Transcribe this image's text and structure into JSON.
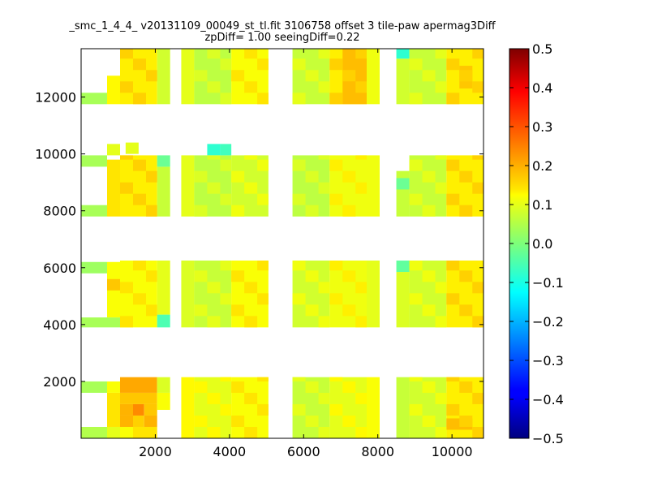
{
  "chart_data": {
    "type": "heatmap",
    "title": "_smc_1_4_4_ v20131109_00049_st_tl.fit 3106758 offset 3 tile-paw apermag3Diff",
    "subtitle": "zpDiff= 1.00 seeingDiff=0.22",
    "xlim": [
      0,
      10850
    ],
    "ylim": [
      0,
      13700
    ],
    "xticks": [
      2000,
      4000,
      6000,
      8000,
      10000
    ],
    "yticks": [
      2000,
      4000,
      6000,
      8000,
      10000,
      12000
    ],
    "colorbar": {
      "range": [
        -0.5,
        0.5
      ],
      "ticks": [
        0.5,
        0.4,
        0.3,
        0.2,
        0.1,
        0.0,
        -0.1,
        -0.2,
        -0.3,
        -0.4,
        -0.5
      ],
      "tick_labels": [
        "0.5",
        "0.4",
        "0.3",
        "0.2",
        "0.1",
        "0.0",
        "−0.1",
        "−0.2",
        "−0.3",
        "−0.4",
        "−0.5"
      ],
      "colormap": "jet"
    },
    "cell_size": [
      350,
      400
    ],
    "column_groups": [
      {
        "x": [
          0,
          1000
        ],
        "note": "partial"
      },
      {
        "x": [
          1000,
          2050
        ]
      },
      {
        "x": [
          2050,
          2400
        ]
      },
      {
        "x": [
          2700,
          3050
        ]
      },
      {
        "x": [
          3050,
          4050
        ]
      },
      {
        "x": [
          4050,
          5050
        ]
      },
      {
        "x": [
          5700,
          6700
        ]
      },
      {
        "x": [
          6700,
          7700
        ]
      },
      {
        "x": [
          7700,
          8050
        ]
      },
      {
        "x": [
          8500,
          8850
        ]
      },
      {
        "x": [
          8850,
          9850
        ]
      },
      {
        "x": [
          9850,
          10850
        ]
      }
    ],
    "row_bands": [
      [
        0,
        2150
      ],
      [
        3900,
        6250
      ],
      [
        7800,
        10200
      ],
      [
        11750,
        13700
      ]
    ],
    "cells": [
      {
        "x": 0,
        "y": 0,
        "w": 700,
        "h": 400,
        "v": 0.05
      },
      {
        "x": 700,
        "y": 0,
        "w": 350,
        "h": 400,
        "v": 0.1
      },
      {
        "x": 700,
        "y": 400,
        "w": 350,
        "h": 1200,
        "v": 0.15
      },
      {
        "x": 700,
        "y": 1600,
        "w": 350,
        "h": 400,
        "v": 0.12
      },
      {
        "x": 0,
        "y": 1600,
        "w": 700,
        "h": 400,
        "v": 0.04
      },
      {
        "x": 1050,
        "y": 0,
        "w": 350,
        "h": 400,
        "v": 0.12
      },
      {
        "x": 1400,
        "y": 0,
        "w": 650,
        "h": 400,
        "v": 0.15
      },
      {
        "x": 1050,
        "y": 400,
        "w": 350,
        "h": 400,
        "v": 0.2
      },
      {
        "x": 1400,
        "y": 400,
        "w": 300,
        "h": 400,
        "v": 0.17
      },
      {
        "x": 1700,
        "y": 400,
        "w": 350,
        "h": 400,
        "v": 0.2
      },
      {
        "x": 1050,
        "y": 800,
        "w": 350,
        "h": 400,
        "v": 0.2
      },
      {
        "x": 1400,
        "y": 800,
        "w": 300,
        "h": 400,
        "v": 0.24
      },
      {
        "x": 1700,
        "y": 800,
        "w": 350,
        "h": 400,
        "v": 0.18
      },
      {
        "x": 1050,
        "y": 1200,
        "w": 1000,
        "h": 400,
        "v": 0.18
      },
      {
        "x": 1050,
        "y": 1600,
        "w": 1000,
        "h": 550,
        "v": 0.21
      },
      {
        "x": 2050,
        "y": 1000,
        "w": 350,
        "h": 600,
        "v": 0.12
      },
      {
        "x": 2050,
        "y": 1600,
        "w": 350,
        "h": 550,
        "v": 0.09
      },
      {
        "x": 2700,
        "y": 0,
        "w": 350,
        "h": 2150,
        "v": 0.13
      },
      {
        "x": 3050,
        "y": 0,
        "w": 1000,
        "h": 2150,
        "v": 0.1
      },
      {
        "x": 4050,
        "y": 0,
        "w": 1000,
        "h": 2150,
        "v": 0.12
      },
      {
        "x": 5700,
        "y": 0,
        "w": 1000,
        "h": 2150,
        "v": 0.07
      },
      {
        "x": 6700,
        "y": 0,
        "w": 1000,
        "h": 2150,
        "v": 0.1
      },
      {
        "x": 7700,
        "y": 0,
        "w": 350,
        "h": 2150,
        "v": 0.12
      },
      {
        "x": 8500,
        "y": 0,
        "w": 350,
        "h": 2150,
        "v": 0.07
      },
      {
        "x": 8850,
        "y": 0,
        "w": 1000,
        "h": 2150,
        "v": 0.08
      },
      {
        "x": 9850,
        "y": 0,
        "w": 1000,
        "h": 2150,
        "v": 0.14
      },
      {
        "x": 9850,
        "y": 300,
        "w": 700,
        "h": 400,
        "v": 0.19
      },
      {
        "x": 0,
        "y": 3900,
        "w": 1050,
        "h": 350,
        "v": 0.04
      },
      {
        "x": 700,
        "y": 4250,
        "w": 350,
        "h": 1950,
        "v": 0.12
      },
      {
        "x": 700,
        "y": 5200,
        "w": 350,
        "h": 400,
        "v": 0.18
      },
      {
        "x": 0,
        "y": 5800,
        "w": 700,
        "h": 400,
        "v": 0.03
      },
      {
        "x": 1050,
        "y": 3900,
        "w": 1000,
        "h": 2350,
        "v": 0.12
      },
      {
        "x": 2050,
        "y": 3900,
        "w": 350,
        "h": 450,
        "v": -0.05
      },
      {
        "x": 2050,
        "y": 4350,
        "w": 350,
        "h": 1900,
        "v": 0.1
      },
      {
        "x": 2700,
        "y": 3900,
        "w": 350,
        "h": 2350,
        "v": 0.09
      },
      {
        "x": 3050,
        "y": 3900,
        "w": 1000,
        "h": 2350,
        "v": 0.07
      },
      {
        "x": 4050,
        "y": 3900,
        "w": 1000,
        "h": 2350,
        "v": 0.12
      },
      {
        "x": 5700,
        "y": 3900,
        "w": 1000,
        "h": 2350,
        "v": 0.08
      },
      {
        "x": 6700,
        "y": 3900,
        "w": 1000,
        "h": 2350,
        "v": 0.11
      },
      {
        "x": 7700,
        "y": 3900,
        "w": 350,
        "h": 2350,
        "v": 0.1
      },
      {
        "x": 8500,
        "y": 3900,
        "w": 350,
        "h": 1950,
        "v": 0.09
      },
      {
        "x": 8500,
        "y": 5850,
        "w": 350,
        "h": 400,
        "v": -0.03
      },
      {
        "x": 8850,
        "y": 3900,
        "w": 1000,
        "h": 2350,
        "v": 0.08
      },
      {
        "x": 9850,
        "y": 3900,
        "w": 1000,
        "h": 2350,
        "v": 0.14
      },
      {
        "x": 0,
        "y": 7800,
        "w": 700,
        "h": 400,
        "v": 0.04
      },
      {
        "x": 700,
        "y": 7800,
        "w": 350,
        "h": 2000,
        "v": 0.15
      },
      {
        "x": 0,
        "y": 9550,
        "w": 700,
        "h": 400,
        "v": 0.04
      },
      {
        "x": 700,
        "y": 9950,
        "w": 350,
        "h": 400,
        "v": 0.1
      },
      {
        "x": 1050,
        "y": 7800,
        "w": 1000,
        "h": 2150,
        "v": 0.14
      },
      {
        "x": 1200,
        "y": 10000,
        "w": 350,
        "h": 400,
        "v": 0.1
      },
      {
        "x": 2050,
        "y": 7800,
        "w": 350,
        "h": 1750,
        "v": 0.07
      },
      {
        "x": 2050,
        "y": 9550,
        "w": 350,
        "h": 400,
        "v": -0.02
      },
      {
        "x": 2700,
        "y": 7800,
        "w": 350,
        "h": 2150,
        "v": 0.1
      },
      {
        "x": 3050,
        "y": 7800,
        "w": 1000,
        "h": 2150,
        "v": 0.06
      },
      {
        "x": 3400,
        "y": 9950,
        "w": 350,
        "h": 400,
        "v": -0.08
      },
      {
        "x": 3750,
        "y": 9950,
        "w": 300,
        "h": 400,
        "v": -0.06
      },
      {
        "x": 4050,
        "y": 7800,
        "w": 1000,
        "h": 2150,
        "v": 0.08
      },
      {
        "x": 5700,
        "y": 7800,
        "w": 1000,
        "h": 2150,
        "v": 0.06
      },
      {
        "x": 6700,
        "y": 7800,
        "w": 1000,
        "h": 2150,
        "v": 0.11
      },
      {
        "x": 7700,
        "y": 7800,
        "w": 350,
        "h": 2150,
        "v": 0.11
      },
      {
        "x": 8500,
        "y": 7800,
        "w": 350,
        "h": 1600,
        "v": 0.07
      },
      {
        "x": 8500,
        "y": 8750,
        "w": 350,
        "h": 400,
        "v": -0.02
      },
      {
        "x": 8850,
        "y": 7800,
        "w": 1000,
        "h": 2150,
        "v": 0.07
      },
      {
        "x": 9850,
        "y": 7800,
        "w": 1000,
        "h": 2150,
        "v": 0.14
      },
      {
        "x": 0,
        "y": 11750,
        "w": 700,
        "h": 400,
        "v": 0.04
      },
      {
        "x": 700,
        "y": 11750,
        "w": 350,
        "h": 1000,
        "v": 0.13
      },
      {
        "x": 1050,
        "y": 11750,
        "w": 1000,
        "h": 1950,
        "v": 0.14
      },
      {
        "x": 2050,
        "y": 11750,
        "w": 350,
        "h": 1950,
        "v": 0.08
      },
      {
        "x": 2700,
        "y": 11750,
        "w": 350,
        "h": 1950,
        "v": 0.1
      },
      {
        "x": 3050,
        "y": 11750,
        "w": 1000,
        "h": 1950,
        "v": 0.06
      },
      {
        "x": 4050,
        "y": 11750,
        "w": 1000,
        "h": 1950,
        "v": 0.12
      },
      {
        "x": 5700,
        "y": 11750,
        "w": 1000,
        "h": 1950,
        "v": 0.07
      },
      {
        "x": 6700,
        "y": 11750,
        "w": 1000,
        "h": 1950,
        "v": 0.14
      },
      {
        "x": 7050,
        "y": 11750,
        "w": 650,
        "h": 1950,
        "v": 0.19
      },
      {
        "x": 7700,
        "y": 11750,
        "w": 350,
        "h": 1950,
        "v": 0.11
      },
      {
        "x": 8500,
        "y": 11750,
        "w": 350,
        "h": 1600,
        "v": 0.08
      },
      {
        "x": 8500,
        "y": 13350,
        "w": 350,
        "h": 350,
        "v": -0.08
      },
      {
        "x": 8850,
        "y": 11750,
        "w": 1000,
        "h": 1950,
        "v": 0.07
      },
      {
        "x": 9850,
        "y": 11750,
        "w": 1000,
        "h": 1950,
        "v": 0.14
      },
      {
        "x": 10200,
        "y": 12300,
        "w": 350,
        "h": 800,
        "v": 0.18
      }
    ]
  }
}
